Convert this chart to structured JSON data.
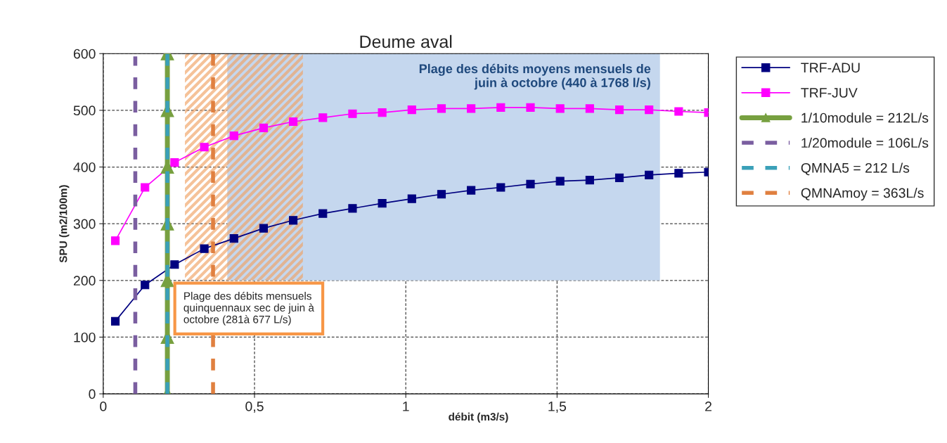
{
  "chart_data": {
    "type": "line",
    "title": "Deume aval",
    "xlabel": "débit (m3/s)",
    "ylabel": "SPU (m2/100m)",
    "xlim": [
      0,
      2
    ],
    "xticks": [
      0,
      {
        "value": 0.5,
        "label": "0,5"
      },
      1,
      {
        "value": 1.5,
        "label": "1,5"
      },
      2
    ],
    "ylim": [
      0,
      600
    ],
    "yticks": [
      0,
      100,
      200,
      300,
      400,
      500,
      600
    ],
    "grid": true,
    "legend": "right",
    "x": [
      0.04,
      0.138,
      0.236,
      0.334,
      0.432,
      0.53,
      0.628,
      0.726,
      0.824,
      0.922,
      1.02,
      1.118,
      1.216,
      1.314,
      1.412,
      1.51,
      1.608,
      1.706,
      1.804,
      1.902,
      2.0
    ],
    "series": [
      {
        "name": "TRF-ADU",
        "color": "#000080",
        "marker": "square",
        "line_style": "solid",
        "values": [
          128,
          192,
          228,
          256,
          274,
          292,
          306,
          318,
          327,
          336,
          344,
          352,
          359,
          364,
          370,
          375,
          377,
          381,
          386,
          389,
          391
        ]
      },
      {
        "name": "TRF-JUV",
        "color": "#ff00ff",
        "marker": "square",
        "line_style": "solid",
        "values": [
          270,
          364,
          408,
          435,
          455,
          469,
          480,
          487,
          494,
          496,
          501,
          503,
          503,
          505,
          505,
          503,
          503,
          501,
          501,
          498,
          496
        ]
      },
      {
        "name": "1/10module = 212L/s",
        "color": "#77a040",
        "marker": "triangle",
        "line_style": "solid",
        "x": [
          0.212,
          0.212,
          0.212,
          0.212,
          0.212,
          0.212,
          0.212
        ],
        "values": [
          0,
          100,
          200,
          300,
          400,
          500,
          600
        ]
      },
      {
        "name": "1/20module = 106L/s",
        "color": "#7a5ea0",
        "marker": "none",
        "line_style": "dashed",
        "x": [
          0.106,
          0.106
        ],
        "values": [
          0,
          595
        ]
      },
      {
        "name": "QMNA5 = 212 L/s",
        "color": "#3aa0b8",
        "marker": "none",
        "line_style": "dashed",
        "x": [
          0.212,
          0.212
        ],
        "values": [
          0,
          600
        ]
      },
      {
        "name": "QMNAmoy = 363L/s",
        "color": "#e08040",
        "marker": "none",
        "line_style": "dashed",
        "x": [
          0.363,
          0.363
        ],
        "values": [
          0,
          600
        ]
      }
    ],
    "bands": [
      {
        "axis": "x",
        "from": 0.41,
        "to": 1.84,
        "color": "#c5d7ee",
        "label": "Plage des débits moyens mensuels de\njuin à octobre (440 à 1768 l/s)"
      },
      {
        "axis": "x",
        "from": 0.27,
        "to": 0.66,
        "color": "#f0a060",
        "label": "Plage des débits mensuels\nquinquennaux sec de juin à\noctobre (281à 677 L/s)"
      }
    ]
  }
}
